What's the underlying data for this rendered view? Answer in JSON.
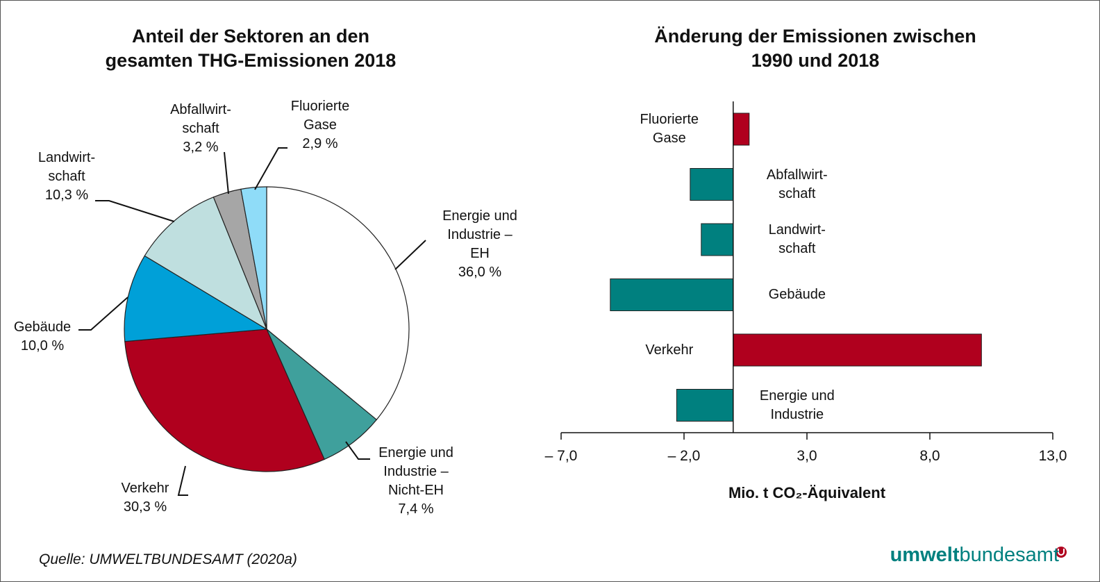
{
  "chart_data": [
    {
      "type": "pie",
      "title": "Anteil der Sektoren an den\ngesamten THG-Emissionen 2018",
      "categories": [
        "Energie und\nIndustrie –\nEH",
        "Energie und\nIndustrie –\nNicht-EH",
        "Verkehr",
        "Gebäude",
        "Landwirt-\nschaft",
        "Abfallwirt-\nschaft",
        "Fluorierte\nGase"
      ],
      "values": [
        36.0,
        7.4,
        30.3,
        10.0,
        10.3,
        3.2,
        2.9
      ],
      "value_labels": [
        "36,0 %",
        "7,4 %",
        "30,3 %",
        "10,0 %",
        "10,3 %",
        "3,2 %",
        "2,9 %"
      ],
      "colors": [
        "#ffffff",
        "#3fa09c",
        "#b0001e",
        "#00a0d8",
        "#bfdfdf",
        "#a6a6a6",
        "#8fdcf8"
      ]
    },
    {
      "type": "hbar",
      "title": "Änderung der Emissionen zwischen\n1990 und 2018",
      "categories": [
        "Fluorierte\nGase",
        "Abfallwirt-\nschaft",
        "Landwirt-\nschaft",
        "Gebäude",
        "Verkehr",
        "Energie und\nIndustrie"
      ],
      "values": [
        0.65,
        -1.75,
        -1.3,
        -5.0,
        10.1,
        -2.3
      ],
      "colors": [
        "#b0001e",
        "#00807f",
        "#00807f",
        "#00807f",
        "#b0001e",
        "#00807f"
      ],
      "xlabel": "Mio. t CO₂-Äquivalent",
      "xlim": [
        -7,
        13
      ],
      "xticks": [
        {
          "value": -7,
          "label": "– 7,0"
        },
        {
          "value": -2,
          "label": "– 2,0"
        },
        {
          "value": 3,
          "label": "3,0"
        },
        {
          "value": 8,
          "label": "8,0"
        },
        {
          "value": 13,
          "label": "13,0"
        }
      ]
    }
  ],
  "source": "Quelle: UMWELTBUNDESAMT (2020a)",
  "logo": {
    "bold": "umwelt",
    "rest": "bundesamt"
  }
}
